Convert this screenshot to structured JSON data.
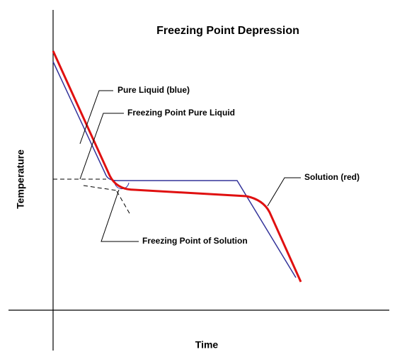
{
  "title": "Freezing Point Depression",
  "labels": {
    "pure_liquid": "Pure Liquid (blue)",
    "freezing_point_pure": "Freezing Point Pure Liquid",
    "solution": "Solution (red)",
    "freezing_point_solution": "Freezing Point of Solution"
  },
  "axes": {
    "y_label": "Temperature",
    "x_label": "Time"
  }
}
